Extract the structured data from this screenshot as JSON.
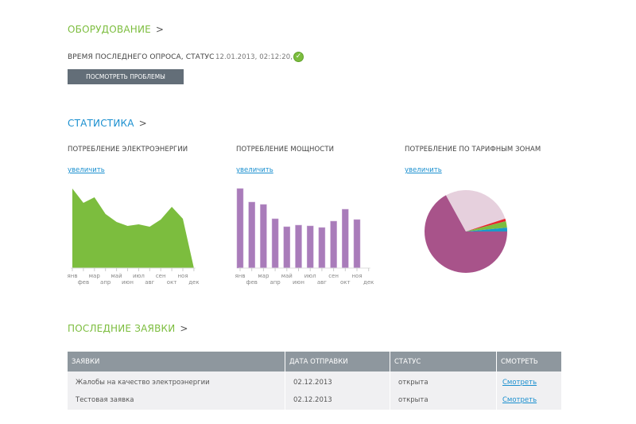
{
  "equipment": {
    "title": "ОБОРУДОВАНИЕ",
    "chevron": ">",
    "poll_label": "ВРЕМЯ ПОСЛЕДНЕГО ОПРОСА, СТАТУС",
    "poll_value": "12.01.2013, 02:12:20,",
    "status_icon": "check-circle-icon",
    "problems_button": "ПОСМОТРЕТЬ ПРОБЛЕМЫ"
  },
  "statistics": {
    "title": "СТАТИСТИКА",
    "chevron": ">",
    "zoom_link": "увеличить"
  },
  "chart_data": [
    {
      "type": "area",
      "title": "ПОТРЕБЛЕНИЕ ЭЛЕКТРОЭНЕРГИИ",
      "categories": [
        "янв",
        "фев",
        "мар",
        "апр",
        "май",
        "июн",
        "июл",
        "авг",
        "сен",
        "окт",
        "ноя",
        "дек"
      ],
      "values": [
        100,
        82,
        89,
        68,
        58,
        53,
        55,
        52,
        61,
        77,
        62,
        0
      ],
      "ylim": [
        0,
        100
      ],
      "color": "#7cbd3e"
    },
    {
      "type": "bar",
      "title": "ПОТРЕБЛЕНИЕ МОЩНОСТИ",
      "categories": [
        "янв",
        "фев",
        "мар",
        "апр",
        "май",
        "июн",
        "июл",
        "авг",
        "сен",
        "окт",
        "ноя",
        "дек"
      ],
      "values": [
        100,
        83,
        80,
        62,
        52,
        54,
        53,
        51,
        59,
        74,
        61,
        0
      ],
      "ylim": [
        0,
        100
      ],
      "color": "#a97cba"
    },
    {
      "type": "pie",
      "title": "ПОТРЕБЛЕНИЕ ПО ТАРИФНЫМ ЗОНАМ",
      "values": [
        67,
        28,
        1,
        2.5,
        1.5
      ],
      "colors": [
        "#a8538a",
        "#e6d0dd",
        "#e8242e",
        "#7cbd3e",
        "#1a9ac9"
      ]
    }
  ],
  "requests": {
    "title": "ПОСЛЕДНИЕ ЗАЯВКИ",
    "chevron": ">",
    "columns": [
      "ЗАЯВКИ",
      "ДАТА ОТПРАВКИ",
      "СТАТУС",
      "СМОТРЕТЬ"
    ],
    "rows": [
      {
        "name": "Жалобы на качество электроэнергии",
        "date": "02.12.2013",
        "status": "открыта",
        "action": "Смотреть"
      },
      {
        "name": "Тестовая заявка",
        "date": "02.12.2013",
        "status": "открыта",
        "action": "Смотреть"
      }
    ]
  }
}
